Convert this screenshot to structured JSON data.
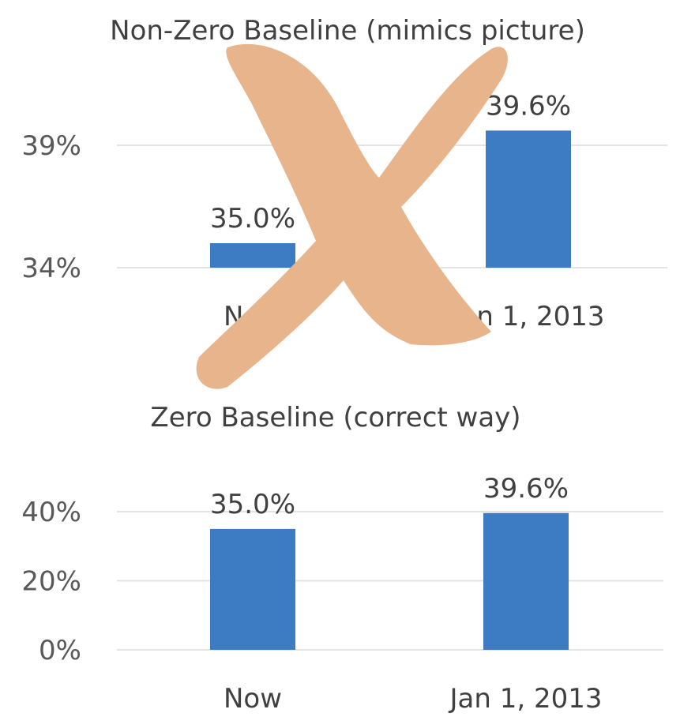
{
  "chart_data": [
    {
      "type": "bar",
      "title": "Non-Zero Baseline (mimics picture)",
      "categories": [
        "Now",
        "Jan 1, 2013"
      ],
      "values": [
        35.0,
        39.6
      ],
      "data_labels": [
        "35.0%",
        "39.6%"
      ],
      "ylim": [
        34,
        39.8
      ],
      "yticks": [
        34,
        39
      ],
      "ytick_labels": [
        "34%",
        "39%"
      ],
      "xlabel": "",
      "ylabel": "",
      "grid": true,
      "legend": "none",
      "bar_color": "#3d7cc2",
      "overlay_mark": "x-mark",
      "overlay_color": "#e8b48c"
    },
    {
      "type": "bar",
      "title": "Zero Baseline (correct way)",
      "categories": [
        "Now",
        "Jan 1, 2013"
      ],
      "values": [
        35.0,
        39.6
      ],
      "data_labels": [
        "35.0%",
        "39.6%"
      ],
      "ylim": [
        0,
        40
      ],
      "yticks": [
        0,
        20,
        40
      ],
      "ytick_labels": [
        "0%",
        "20%",
        "40%"
      ],
      "xlabel": "",
      "ylabel": "",
      "grid": true,
      "legend": "none",
      "bar_color": "#3d7cc2"
    }
  ]
}
